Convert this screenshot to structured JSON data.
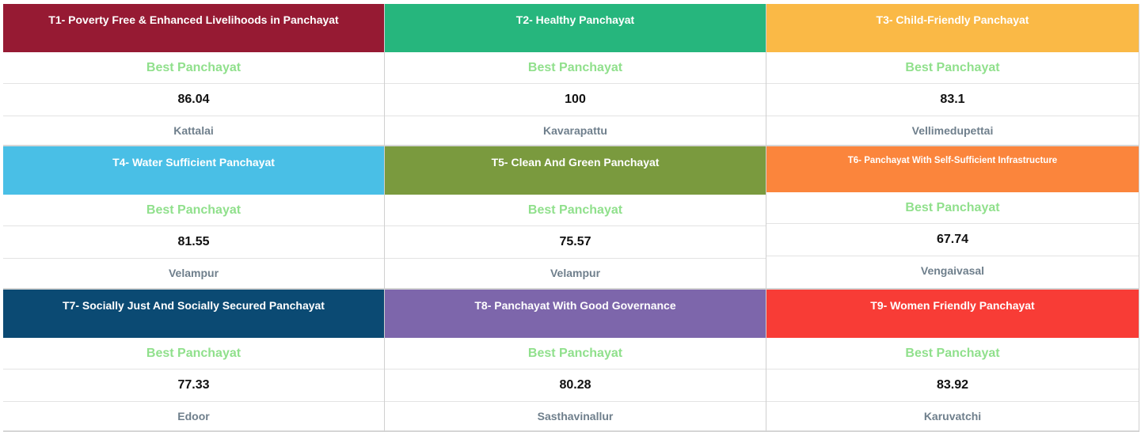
{
  "best_label": "Best Panchayat",
  "themes": [
    {
      "title": "T1- Poverty Free & Enhanced Livelihoods in Panchayat",
      "color": "#961a33",
      "score": "86.04",
      "panchayat": "Kattalai"
    },
    {
      "title": "T2- Healthy Panchayat",
      "color": "#26b67d",
      "score": "100",
      "panchayat": "Kavarapattu"
    },
    {
      "title": "T3- Child-Friendly Panchayat",
      "color": "#fab946",
      "score": "83.1",
      "panchayat": "Vellimedupettai"
    },
    {
      "title": "T4- Water Sufficient Panchayat",
      "color": "#49bfe6",
      "score": "81.55",
      "panchayat": "Velampur"
    },
    {
      "title": "T5- Clean And Green Panchayat",
      "color": "#7a9a3e",
      "score": "75.57",
      "panchayat": "Velampur"
    },
    {
      "title": "T6- Panchayat With Self-Sufficient Infrastructure",
      "color": "#fb853c",
      "score": "67.74",
      "panchayat": "Vengaivasal"
    },
    {
      "title": "T7- Socially Just And Socially Secured Panchayat",
      "color": "#0b4a73",
      "score": "77.33",
      "panchayat": "Edoor"
    },
    {
      "title": "T8- Panchayat With Good Governance",
      "color": "#7d66ab",
      "score": "80.28",
      "panchayat": "Sasthavinallur"
    },
    {
      "title": "T9- Women Friendly Panchayat",
      "color": "#f83c36",
      "score": "83.92",
      "panchayat": "Karuvatchi"
    }
  ]
}
